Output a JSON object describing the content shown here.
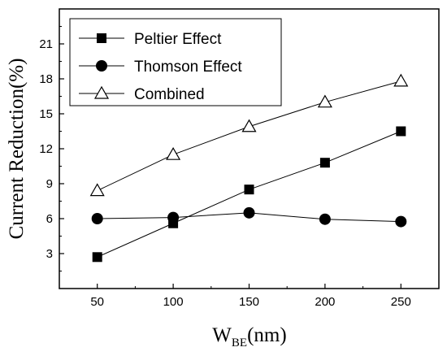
{
  "chart_data": {
    "type": "line",
    "x": [
      50,
      100,
      150,
      200,
      250
    ],
    "xlabel_main": "W",
    "xlabel_sub": "BE",
    "xlabel_unit": "(nm)",
    "ylabel": "Current Reduction(%)",
    "xlim": [
      25,
      275
    ],
    "ylim": [
      0,
      24
    ],
    "xticks": [
      50,
      100,
      150,
      200,
      250
    ],
    "yticks": [
      3,
      6,
      9,
      12,
      15,
      18,
      21
    ],
    "grid": false,
    "legend_position": "top-left",
    "series": [
      {
        "name": "Peltier Effect",
        "marker": "square-filled",
        "values": [
          2.7,
          5.6,
          8.5,
          10.8,
          13.5
        ]
      },
      {
        "name": "Thomson Effect",
        "marker": "circle-filled",
        "values": [
          6.0,
          6.1,
          6.5,
          5.95,
          5.75
        ]
      },
      {
        "name": "Combined",
        "marker": "triangle-open",
        "values": [
          8.4,
          11.5,
          13.9,
          16.0,
          17.8
        ]
      }
    ]
  }
}
